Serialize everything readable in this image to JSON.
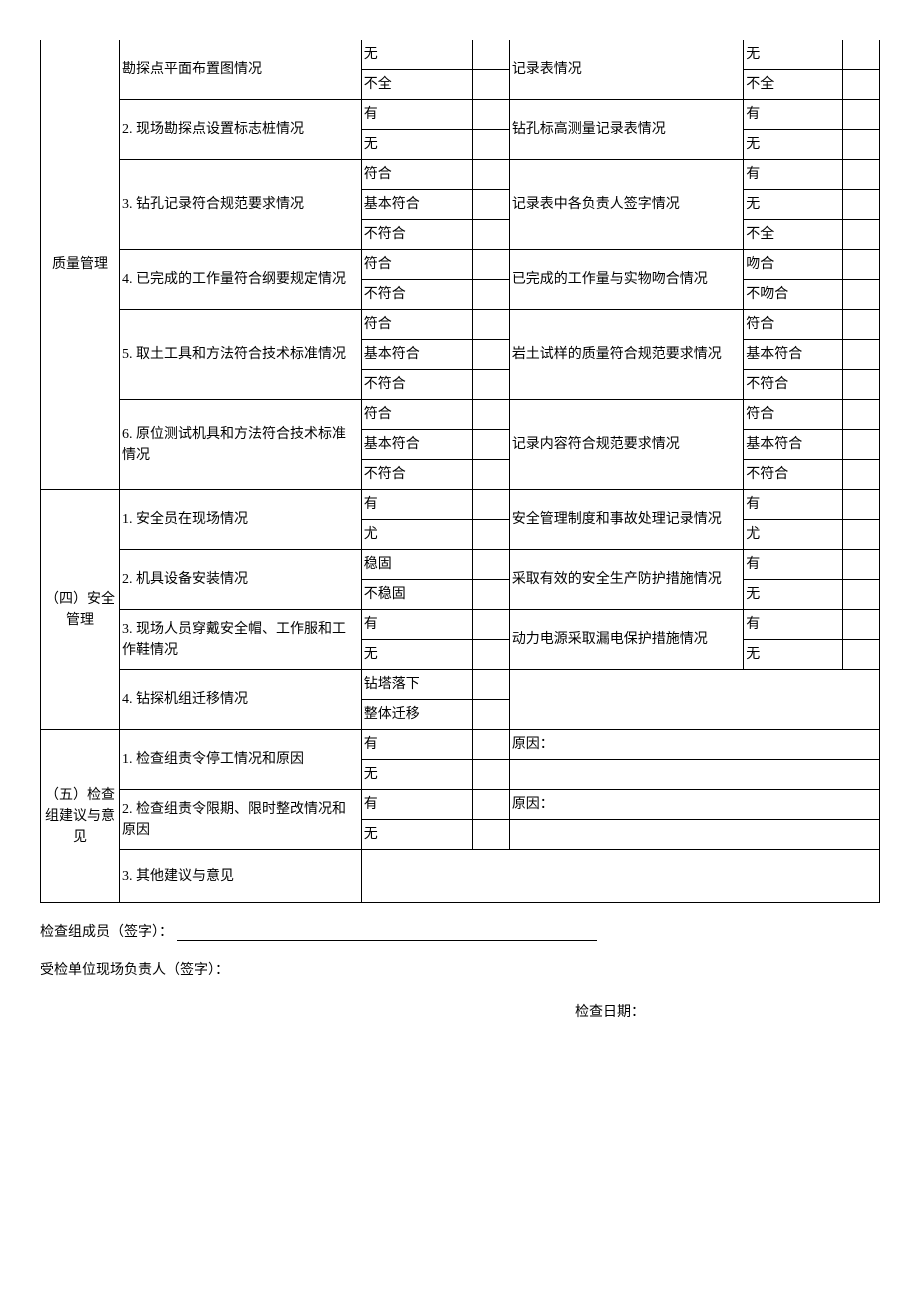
{
  "col_widths": [
    "64",
    "196",
    "90",
    "30",
    "190",
    "80",
    "30"
  ],
  "sections": {
    "quality": {
      "header": "质量管理",
      "items": [
        {
          "left_label": "勘探点平面布置图情况",
          "left_opts": [
            "无",
            "不全"
          ],
          "right_label": "记录表情况",
          "right_opts": [
            "无",
            "不全"
          ]
        },
        {
          "left_label": "2. 现场勘探点设置标志桩情况",
          "left_opts": [
            "有",
            "无"
          ],
          "right_label": "钻孔标高测量记录表情况",
          "right_opts": [
            "有",
            "无"
          ]
        },
        {
          "left_label": "3. 钻孔记录符合规范要求情况",
          "left_opts": [
            "符合",
            "基本符合",
            "不符合"
          ],
          "right_label": "记录表中各负责人签字情况",
          "right_opts": [
            "有",
            "无",
            "不全"
          ]
        },
        {
          "left_label": "4. 已完成的工作量符合纲要规定情况",
          "left_opts": [
            "符合",
            "不符合"
          ],
          "right_label": "已完成的工作量与实物吻合情况",
          "right_opts": [
            "吻合",
            "不吻合"
          ]
        },
        {
          "left_label": "5. 取土工具和方法符合技术标准情况",
          "left_opts": [
            "符合",
            "基本符合",
            "不符合"
          ],
          "right_label": "岩土试样的质量符合规范要求情况",
          "right_opts": [
            "符合",
            "基本符合",
            "不符合"
          ]
        },
        {
          "left_label": "6. 原位测试机具和方法符合技术标准情况",
          "left_opts": [
            "符合",
            "基本符合",
            "不符合"
          ],
          "right_label": "记录内容符合规范要求情况",
          "right_opts": [
            "符合",
            "基本符合",
            "不符合"
          ]
        }
      ]
    },
    "safety": {
      "header": "（四）安全管理",
      "items": [
        {
          "left_label": "1. 安全员在现场情况",
          "left_opts": [
            "有",
            "尤"
          ],
          "right_label": "安全管理制度和事故处理记录情况",
          "right_opts": [
            "有",
            "尤"
          ]
        },
        {
          "left_label": "2. 机具设备安装情况",
          "left_opts": [
            "稳固",
            "不稳固"
          ],
          "right_label": "采取有效的安全生产防护措施情况",
          "right_opts": [
            "有",
            "无"
          ]
        },
        {
          "left_label": "3. 现场人员穿戴安全帽、工作服和工作鞋情况",
          "left_opts": [
            "有",
            "无"
          ],
          "right_label": "动力电源采取漏电保护措施情况",
          "right_opts": [
            "有",
            "无"
          ]
        },
        {
          "left_label": "4. 钻探机组迁移情况",
          "left_opts": [
            "钻塔落下",
            "整体迁移"
          ],
          "right_label": "",
          "right_opts": [
            "",
            ""
          ]
        }
      ]
    },
    "suggest": {
      "header": "（五）检查组建议与意见",
      "items": [
        {
          "left_label": "1. 检查组责令停工情况和原因",
          "left_opts": [
            "有",
            "无"
          ],
          "right_label": "原因：",
          "right_opts": [
            ""
          ]
        },
        {
          "left_label": "2. 检查组责令限期、限时整改情况和原因",
          "left_opts": [
            "有",
            "无"
          ],
          "right_label": "原因：",
          "right_opts": [
            ""
          ]
        },
        {
          "left_label": "3. 其他建议与意见",
          "left_opts": [],
          "right_label": "",
          "right_opts": []
        }
      ]
    }
  },
  "footer": {
    "sign1_label": "检查组成员（签字）：",
    "sign2_label": "受检单位现场负责人（签字）：",
    "date_label": "检查日期："
  },
  "styling": {
    "background_color": "#ffffff",
    "border_color": "#000000",
    "text_color": "#000000",
    "font_family": "SimSun",
    "font_size_pt": 10.5,
    "line_height": 1.5
  }
}
